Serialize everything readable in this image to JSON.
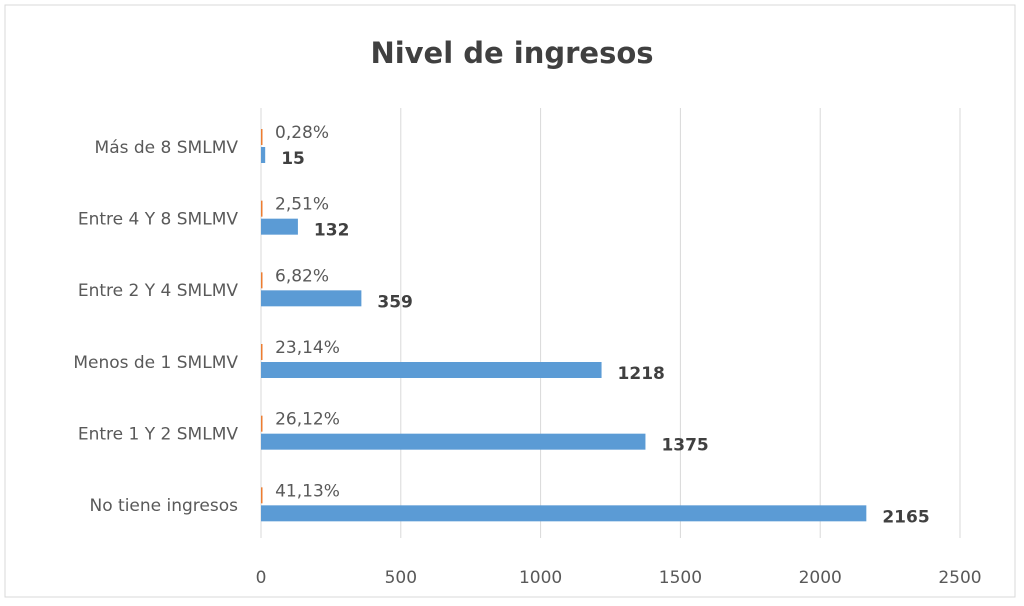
{
  "chart_data": {
    "type": "barh",
    "title": "Nivel de ingresos",
    "categories": [
      "Más de 8 SMLMV",
      "Entre 4 Y 8 SMLMV",
      "Entre 2 Y 4 SMLMV",
      "Menos de 1 SMLMV",
      "Entre 1 Y 2 SMLMV",
      "No tiene ingresos"
    ],
    "series": [
      {
        "color": "#ed7d31",
        "values": [
          0.0028,
          0.0251,
          0.0682,
          0.2314,
          0.2612,
          0.4113
        ],
        "value_labels": [
          "0,28%",
          "2,51%",
          "6,82%",
          "23,14%",
          "26,12%",
          "41,13%"
        ]
      },
      {
        "color": "#5b9bd5",
        "values": [
          15,
          132,
          359,
          1218,
          1375,
          2165
        ]
      }
    ],
    "xlim": [
      0,
      2500
    ],
    "xticks": [
      0,
      500,
      1000,
      1500,
      2000,
      2500
    ],
    "grid": true
  }
}
